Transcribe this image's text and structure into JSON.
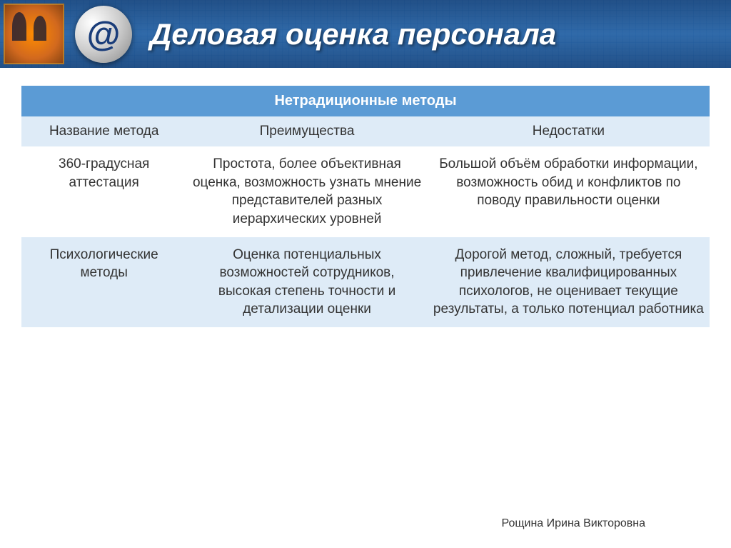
{
  "slide": {
    "title": "Деловая оценка персонала",
    "header_bg_primary": "#0a3d7a",
    "header_bg_secondary": "#1a5aa0",
    "at_symbol": "@"
  },
  "table": {
    "title": "Нетрадиционные методы",
    "title_bg": "#5b9bd5",
    "title_color": "#ffffff",
    "header_bg": "#deebf7",
    "row_even_bg": "#deebf7",
    "row_odd_bg": "#ffffff",
    "text_color": "#333333",
    "columns": {
      "col1": {
        "label": "Название метода",
        "width": "24%"
      },
      "col2": {
        "label": "Преимущества",
        "width": "35%"
      },
      "col3": {
        "label": "Недостатки",
        "width": "41%"
      }
    },
    "rows": [
      {
        "name": "360-градусная аттестация",
        "advantages": "Простота, более объективная оценка, возможность узнать мнение представителей разных иерархических уровней",
        "disadvantages": "Большой объём обработки информации, возможность обид и конфликтов по поводу правильности оценки"
      },
      {
        "name": "Психологические методы",
        "advantages": "Оценка потенциальных возможностей сотрудников, высокая степень точности и детализации оценки",
        "disadvantages": "Дорогой метод, сложный, требуется привлечение квалифицированных психологов, не оценивает текущие результаты, а только потенциал работника"
      }
    ]
  },
  "footer": {
    "author": "Рощина Ирина Викторовна"
  }
}
